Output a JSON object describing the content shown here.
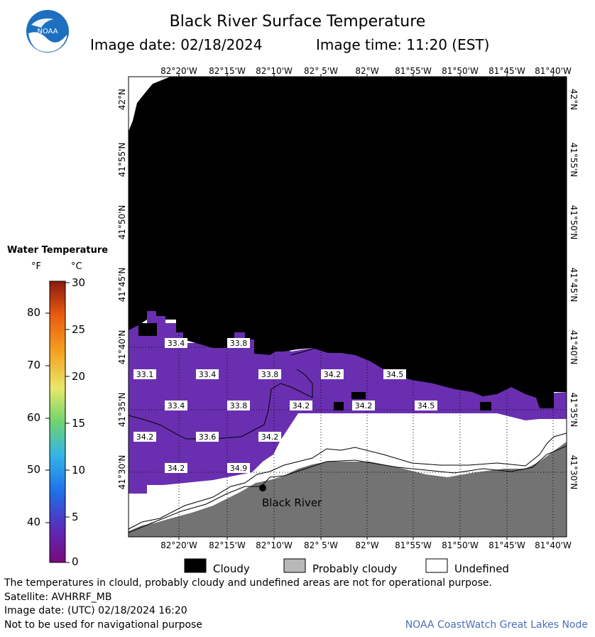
{
  "title": "Black River Surface Temperature",
  "image_date_label": "Image date: 02/18/2024",
  "image_time_label": "Image time: 11:20 (EST)",
  "logo_text": "NOAA",
  "map": {
    "top_lon_labels": [
      "82°20'W",
      "82°15'W",
      "82°10'W",
      "82° 5'W",
      "82°W",
      "81°55'W",
      "81°50'W",
      "81°45'W",
      "81°40'W"
    ],
    "bottom_lon_labels": [
      "82°20'W",
      "82°15'W",
      "82°10'W",
      "82° 5'W",
      "82°W",
      "81°55'W",
      "81°50'W",
      "81°45'W",
      "81°40'W"
    ],
    "lat_labels": [
      "42°N",
      "41°55'N",
      "41°50'N",
      "41°45'N",
      "41°40'N",
      "41°35'N",
      "41°30'N"
    ],
    "temperature_labels": [
      "33.4",
      "33.8",
      "33.1",
      "33.4",
      "33.8",
      "34.2",
      "34.5",
      "33.4",
      "33.8",
      "34.2",
      "34.2",
      "34.5",
      "34.2",
      "33.6",
      "34.2",
      "34.2",
      "34.9"
    ],
    "place_label": "Black River",
    "colors": {
      "cloudy": "#000000",
      "water": "#6a2fb0",
      "land": "#737373",
      "undefined": "#ffffff"
    }
  },
  "scale": {
    "title": "Water Temperature",
    "unit_f": "°F",
    "unit_c": "°C",
    "f_labels": [
      "80",
      "70",
      "60",
      "50",
      "40"
    ],
    "c_labels": [
      "30",
      "25",
      "20",
      "15",
      "10",
      "5",
      "0"
    ]
  },
  "legend": {
    "cloudy": "Cloudy",
    "probably_cloudy": "Probably cloudy",
    "undefined": "Undefined"
  },
  "footer": {
    "disclaimer": "The temperatures in clould, probably cloudy and undefined areas are not for operational purpose.",
    "satellite": "Satellite: AVHRRF_MB",
    "image_date_utc": "Image date: (UTC) 02/18/2024  16:20",
    "navigation_note": "Not to be used for navigational purpose",
    "credit": "NOAA CoastWatch Great Lakes Node"
  }
}
